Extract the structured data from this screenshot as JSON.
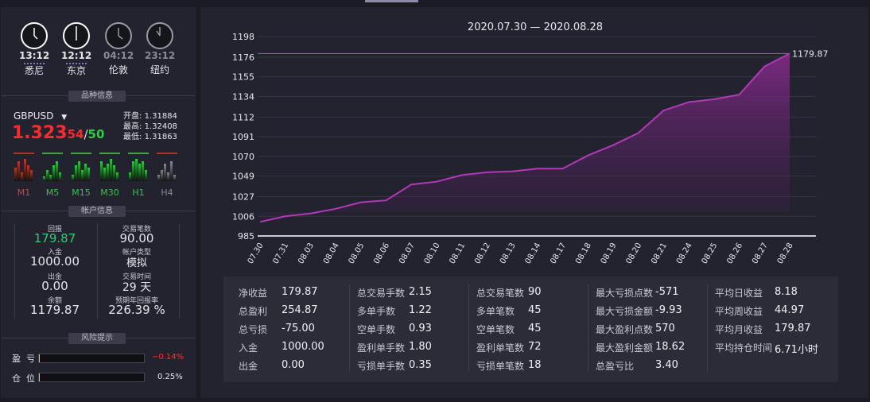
{
  "clocks": [
    {
      "time": "13:12",
      "city": "悉尼",
      "active": true
    },
    {
      "time": "12:12",
      "city": "东京",
      "active": true
    },
    {
      "time": "04:12",
      "city": "伦敦",
      "active": false
    },
    {
      "time": "23:12",
      "city": "纽约",
      "active": false
    }
  ],
  "instrument": {
    "section_title": "品种信息",
    "symbol": "GBPUSD",
    "price_main": "1.323",
    "price_bid_small": "54",
    "price_sep": "/",
    "price_ask_small": "50",
    "open_label": "开盘:",
    "open_value": "1.31884",
    "high_label": "最高:",
    "high_value": "1.32408",
    "low_label": "最低:",
    "low_value": "1.31863",
    "timeframes": [
      {
        "label": "M1",
        "color": "#c0392b"
      },
      {
        "label": "M5",
        "color": "#2ecc40"
      },
      {
        "label": "M15",
        "color": "#2ecc40"
      },
      {
        "label": "M30",
        "color": "#2ecc40"
      },
      {
        "label": "H1",
        "color": "#2ecc40"
      },
      {
        "label": "H4",
        "color": "#8a8a94"
      }
    ]
  },
  "account": {
    "section_title": "帐户信息",
    "return_label": "回报",
    "return_value": "179.87",
    "deposit_label": "入金",
    "deposit_value": "1000.00",
    "withdraw_label": "出金",
    "withdraw_value": "0.00",
    "balance_label": "余额",
    "balance_value": "1179.87",
    "trades_label": "交易笔数",
    "trades_value": "90.00",
    "type_label": "帐户类型",
    "type_value": "模拟",
    "time_label": "交易时间",
    "time_value": "29 天",
    "annual_label": "预期年回报率",
    "annual_value": "226.39 %"
  },
  "risk": {
    "section_title": "风险提示",
    "pnl_label": "盈  亏",
    "pnl_value": "−0.14%",
    "pnl_fraction": 0.0014,
    "position_label": "仓  位",
    "position_value": "0.25%",
    "position_fraction": 0.0025
  },
  "chart_data": {
    "type": "area",
    "title": "2020.07.30 — 2020.08.28",
    "x": [
      "07.30",
      "07.31",
      "08.03",
      "08.04",
      "08.05",
      "08.06",
      "08.07",
      "08.10",
      "08.11",
      "08.12",
      "08.13",
      "08.14",
      "08.17",
      "08.18",
      "08.19",
      "08.20",
      "08.21",
      "08.24",
      "08.25",
      "08.26",
      "08.27",
      "08.28"
    ],
    "values": [
      1000,
      1006,
      1009,
      1014,
      1021,
      1023,
      1040,
      1043,
      1050,
      1053,
      1054,
      1057,
      1057,
      1071,
      1082,
      1095,
      1119,
      1128,
      1131,
      1136,
      1166,
      1179.87
    ],
    "y_ticks": [
      985,
      1006,
      1027,
      1049,
      1070,
      1091,
      1112,
      1134,
      1155,
      1176,
      1198
    ],
    "ylim": [
      985,
      1198
    ],
    "end_label": "1179.87",
    "reference_line": 1179.87,
    "line_color": "#b03ab5"
  },
  "stats": [
    [
      {
        "label": "净收益",
        "value": "179.87"
      },
      {
        "label": "总盈利",
        "value": "254.87"
      },
      {
        "label": "总亏损",
        "value": "-75.00"
      },
      {
        "label": "入金",
        "value": "1000.00"
      },
      {
        "label": "出金",
        "value": "0.00"
      }
    ],
    [
      {
        "label": "总交易手数",
        "value": "2.15"
      },
      {
        "label": "多单手数",
        "value": "1.22"
      },
      {
        "label": "空单手数",
        "value": "0.93"
      },
      {
        "label": "盈利单手数",
        "value": "1.80"
      },
      {
        "label": "亏损单手数",
        "value": "0.35"
      }
    ],
    [
      {
        "label": "总交易笔数",
        "value": "90"
      },
      {
        "label": "多单笔数",
        "value": "45"
      },
      {
        "label": "空单笔数",
        "value": "45"
      },
      {
        "label": "盈利单笔数",
        "value": "72"
      },
      {
        "label": "亏损单笔数",
        "value": "18"
      }
    ],
    [
      {
        "label": "最大亏损点数",
        "value": "-571"
      },
      {
        "label": "最大亏损金额",
        "value": "-9.93"
      },
      {
        "label": "最大盈利点数",
        "value": "570"
      },
      {
        "label": "最大盈利金额",
        "value": "18.62"
      },
      {
        "label": "总盈亏比",
        "value": "3.40"
      }
    ],
    [
      {
        "label": "平均日收益",
        "value": "8.18"
      },
      {
        "label": "平均周收益",
        "value": "44.97"
      },
      {
        "label": "平均月收益",
        "value": "179.87"
      },
      {
        "label": "平均持仓时间",
        "value": "6.71小时"
      }
    ]
  ]
}
